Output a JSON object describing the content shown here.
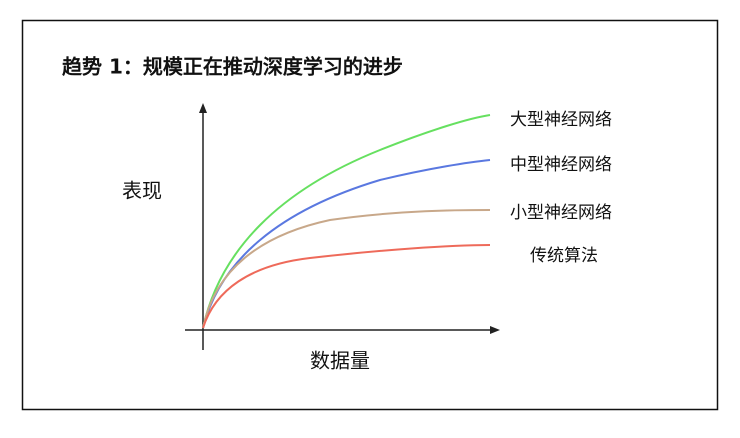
{
  "title": "趋势 1：规模正在推动深度学习的进步",
  "y_axis_label": "表现",
  "x_axis_label": "数据量",
  "curves": [
    {
      "label": "大型神经网络"
    },
    {
      "label": "中型神经网络"
    },
    {
      "label": "小型神经网络"
    },
    {
      "label": "传统算法"
    }
  ]
}
